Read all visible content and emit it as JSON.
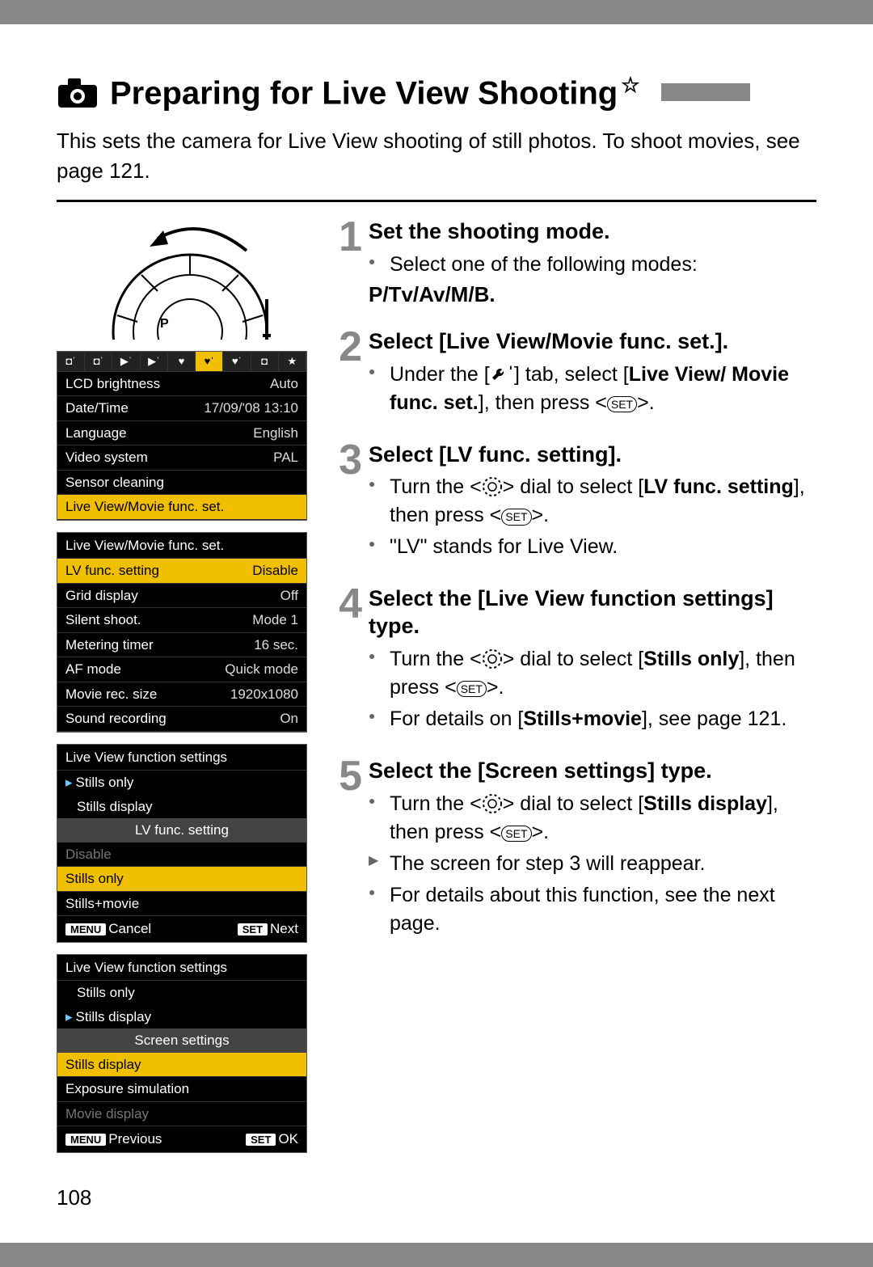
{
  "page": {
    "title": "Preparing for Live View Shooting",
    "star": "☆",
    "intro": "This sets the camera for Live View shooting of still photos. To shoot movies, see page 121.",
    "page_number": "108"
  },
  "menu1": {
    "tabs": [
      "◘ˈ",
      "◘ˈ",
      "▶ˈ",
      "▶ˈ",
      "♥",
      "♥ˈ",
      "♥ˈ",
      "◘",
      "★"
    ],
    "active_tab_index": 5,
    "rows": [
      {
        "label": "LCD brightness",
        "value": "Auto"
      },
      {
        "label": "Date/Time",
        "value": "17/09/'08 13:10"
      },
      {
        "label": "Language",
        "value": "English"
      },
      {
        "label": "Video system",
        "value": "PAL"
      },
      {
        "label": "Sensor cleaning",
        "value": ""
      },
      {
        "label": "Live View/Movie func. set.",
        "value": "",
        "hl": true
      }
    ]
  },
  "menu2": {
    "title": "Live View/Movie func. set.",
    "rows": [
      {
        "label": "LV func. setting",
        "value": "Disable",
        "hl": true
      },
      {
        "label": "Grid display",
        "value": "Off"
      },
      {
        "label": "Silent shoot.",
        "value": "Mode 1"
      },
      {
        "label": "Metering timer",
        "value": "16 sec."
      },
      {
        "label": "AF mode",
        "value": "Quick mode"
      },
      {
        "label": "Movie rec. size",
        "value": "1920x1080"
      },
      {
        "label": "Sound recording",
        "value": "On"
      }
    ]
  },
  "menu3": {
    "title": "Live View function settings",
    "current": [
      "Stills only",
      "Stills display"
    ],
    "current_selected_index": 0,
    "sub_header": "LV func. setting",
    "options": [
      {
        "label": "Disable",
        "state": "gray"
      },
      {
        "label": "Stills only",
        "state": "hl"
      },
      {
        "label": "Stills+movie",
        "state": "normal"
      }
    ],
    "footer_left_btn": "MENU",
    "footer_left": "Cancel",
    "footer_right_btn": "SET",
    "footer_right": "Next"
  },
  "menu4": {
    "title": "Live View function settings",
    "current": [
      "Stills only",
      "Stills display"
    ],
    "current_selected_index": 1,
    "sub_header": "Screen settings",
    "options": [
      {
        "label": "Stills display",
        "state": "hl"
      },
      {
        "label": "Exposure simulation",
        "state": "normal"
      },
      {
        "label": "Movie display",
        "state": "gray"
      }
    ],
    "footer_left_btn": "MENU",
    "footer_left": "Previous",
    "footer_right_btn": "SET",
    "footer_right": "OK"
  },
  "steps": [
    {
      "num": "1",
      "title": "Set the shooting mode.",
      "bullets": [
        {
          "pre": "Select one of the following modes:",
          "post": ""
        }
      ],
      "modes": "P/Tv/Av/M/B"
    },
    {
      "num": "2",
      "title": "Select [Live View/Movie func. set.].",
      "bullets": [
        {
          "pre": "Under the [",
          "icon": "wrench",
          "mid": "] tab, select [",
          "bold1": "Live View/ Movie func. set.",
          "post": "], then press <",
          "icon2": "set",
          "end": ">."
        }
      ]
    },
    {
      "num": "3",
      "title": "Select [LV func. setting].",
      "bullets": [
        {
          "pre": "Turn the <",
          "icon": "dial",
          "mid": "> dial to select [",
          "bold1": "LV func. setting",
          "post": "], then press <",
          "icon2": "set",
          "end": ">."
        },
        {
          "text": "\"LV\" stands for Live View."
        }
      ]
    },
    {
      "num": "4",
      "title": "Select the [Live View function settings] type.",
      "bullets": [
        {
          "pre": "Turn the <",
          "icon": "dial",
          "mid": "> dial to select [",
          "bold1": "Stills only",
          "post": "], then press <",
          "icon2": "set",
          "end": ">."
        },
        {
          "pre": "For details on [",
          "bold1": "Stills+movie",
          "post": "], see page 121."
        }
      ]
    },
    {
      "num": "5",
      "title": "Select the [Screen settings] type.",
      "bullets": [
        {
          "pre": "Turn the <",
          "icon": "dial",
          "mid": "> dial to select [",
          "bold1": "Stills display",
          "post": "], then press <",
          "icon2": "set",
          "end": ">."
        },
        {
          "text": "The screen for step 3 will reappear.",
          "arrow": true
        },
        {
          "text": "For details about this function, see the next page."
        }
      ]
    }
  ],
  "colors": {
    "step_num": "#888888",
    "highlight": "#f0c000",
    "panel_bg": "#000000"
  }
}
